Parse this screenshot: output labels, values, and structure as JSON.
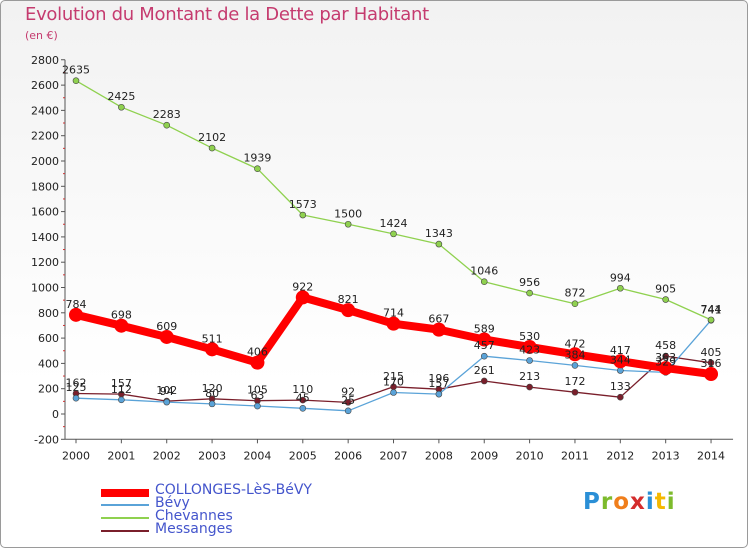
{
  "header": {
    "title": "Evolution du Montant de la Dette par Habitant",
    "subtitle": "(en €)"
  },
  "logo": {
    "letters": [
      "P",
      "r",
      "o",
      "x",
      "i",
      "t",
      "i"
    ],
    "colors": [
      "#2b8fd6",
      "#7dbb2c",
      "#f07e1b",
      "#d42d2d",
      "#2b8fd6",
      "#f5b800",
      "#7dbb2c"
    ]
  },
  "chart_data": {
    "type": "line",
    "title": "Evolution du Montant de la Dette par Habitant",
    "subtitle": "(en €)",
    "x": [
      "2000",
      "2001",
      "2002",
      "2003",
      "2004",
      "2005",
      "2006",
      "2007",
      "2008",
      "2009",
      "2010",
      "2011",
      "2012",
      "2013",
      "2014"
    ],
    "ylim": [
      -200,
      2800
    ],
    "yticks": [
      -200,
      0,
      200,
      400,
      600,
      800,
      1000,
      1200,
      1400,
      1600,
      1800,
      2000,
      2200,
      2400,
      2600,
      2800
    ],
    "grid": false,
    "legend_position": "bottom-left",
    "series": [
      {
        "name": "COLLONGES-LèS-BéVY",
        "color": "#ff0000",
        "values": [
          784,
          698,
          609,
          511,
          406,
          922,
          821,
          714,
          667,
          589,
          530,
          472,
          417,
          363,
          316
        ]
      },
      {
        "name": "Bévy",
        "color": "#5aa3d8",
        "values": [
          125,
          112,
          94,
          80,
          63,
          45,
          25,
          170,
          157,
          457,
          423,
          384,
          344,
          329,
          741
        ]
      },
      {
        "name": "Chevannes",
        "color": "#8fd14f",
        "values": [
          2635,
          2425,
          2283,
          2102,
          1939,
          1573,
          1500,
          1424,
          1343,
          1046,
          956,
          872,
          994,
          905,
          744
        ]
      },
      {
        "name": "Messanges",
        "color": "#7a1f2b",
        "values": [
          162,
          157,
          102,
          120,
          105,
          110,
          92,
          215,
          196,
          261,
          213,
          172,
          133,
          458,
          405
        ]
      }
    ]
  }
}
